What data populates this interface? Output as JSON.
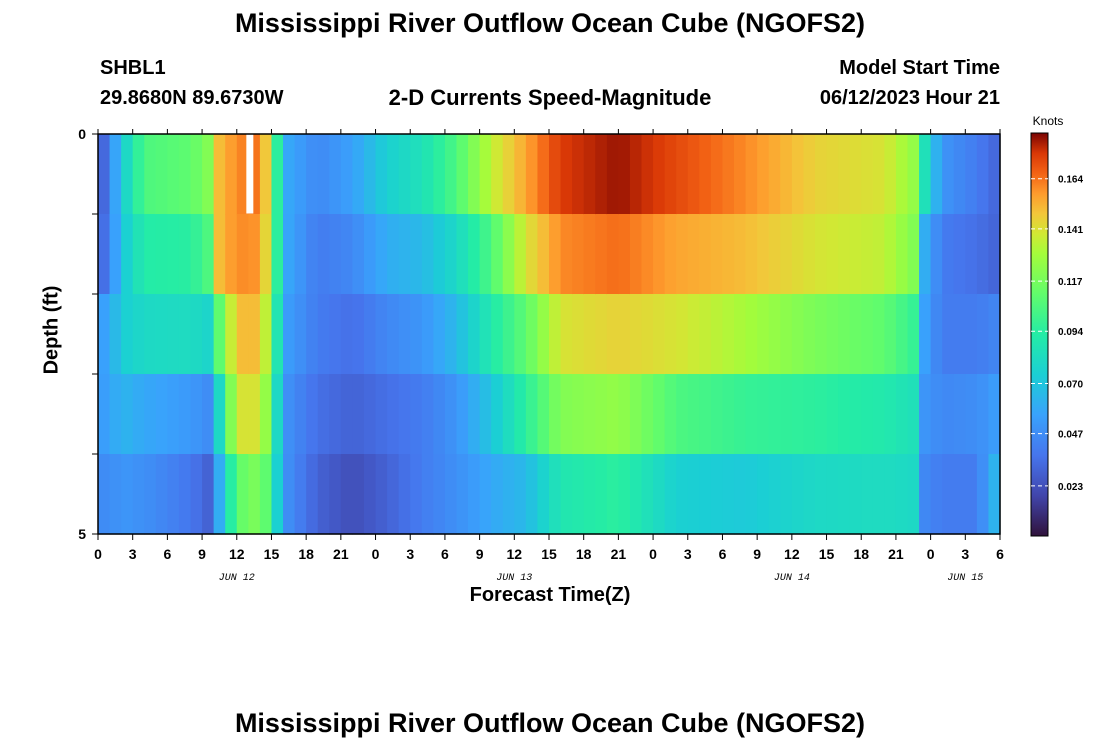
{
  "header": {
    "title": "Mississippi River Outflow Ocean Cube (NGOFS2)",
    "station": "SHBL1",
    "coords": "29.8680N  89.6730W",
    "subtitle": "2-D Currents Speed-Magnitude",
    "model_start_label": "Model Start Time",
    "model_start_value": "06/12/2023 Hour 21"
  },
  "footer": {
    "title": "Mississippi River Outflow Ocean Cube (NGOFS2)"
  },
  "chart_data": {
    "type": "heatmap",
    "title": "2-D Currents Speed-Magnitude",
    "xlabel": "Forecast Time(Z)",
    "ylabel": "Depth (ft)",
    "units": "Knots",
    "x_range_hours": [
      0,
      78
    ],
    "x_tick_labels": [
      "0",
      "3",
      "6",
      "9",
      "12",
      "15",
      "18",
      "21",
      "0",
      "3",
      "6",
      "9",
      "12",
      "15",
      "18",
      "21",
      "0",
      "3",
      "6",
      "9",
      "12",
      "15",
      "18",
      "21",
      "0",
      "3",
      "6"
    ],
    "date_labels": [
      {
        "text": "JUN 12",
        "hour": 12
      },
      {
        "text": "JUN 13",
        "hour": 36
      },
      {
        "text": "JUN 14",
        "hour": 60
      },
      {
        "text": "JUN 15",
        "hour": 75
      }
    ],
    "y_tick_labels": [
      "0",
      "5"
    ],
    "y_range": [
      0,
      5
    ],
    "colorbar_ticks": [
      "0.164",
      "0.141",
      "0.117",
      "0.094",
      "0.070",
      "0.047",
      "0.023"
    ],
    "colorbar_range": [
      0.0,
      0.185
    ],
    "missing_cell": {
      "hour": 13,
      "layer": 0
    },
    "layers": 5,
    "keyframes": [
      {
        "hour": 0,
        "values": [
          0.02,
          0.025,
          0.05,
          0.05,
          0.045
        ]
      },
      {
        "hour": 1,
        "values": [
          0.045,
          0.045,
          0.06,
          0.058,
          0.048
        ]
      },
      {
        "hour": 2.5,
        "values": [
          0.08,
          0.075,
          0.075,
          0.062,
          0.05
        ]
      },
      {
        "hour": 4,
        "values": [
          0.105,
          0.092,
          0.08,
          0.058,
          0.048
        ]
      },
      {
        "hour": 8,
        "values": [
          0.11,
          0.094,
          0.082,
          0.052,
          0.038
        ]
      },
      {
        "hour": 9.5,
        "values": [
          0.12,
          0.105,
          0.078,
          0.047,
          0.03
        ]
      },
      {
        "hour": 10.5,
        "values": [
          0.15,
          0.15,
          0.11,
          0.08,
          0.06
        ]
      },
      {
        "hour": 12,
        "values": [
          0.16,
          0.16,
          0.15,
          0.14,
          0.11
        ]
      },
      {
        "hour": 14,
        "values": [
          0.165,
          0.158,
          0.15,
          0.14,
          0.12
        ]
      },
      {
        "hour": 15,
        "values": [
          0.13,
          0.13,
          0.12,
          0.11,
          0.1
        ]
      },
      {
        "hour": 16,
        "values": [
          0.06,
          0.06,
          0.055,
          0.05,
          0.05
        ]
      },
      {
        "hour": 19,
        "values": [
          0.045,
          0.04,
          0.04,
          0.035,
          0.03
        ]
      },
      {
        "hour": 22,
        "values": [
          0.055,
          0.045,
          0.035,
          0.03,
          0.022
        ]
      },
      {
        "hour": 25,
        "values": [
          0.075,
          0.06,
          0.045,
          0.035,
          0.03
        ]
      },
      {
        "hour": 28,
        "values": [
          0.085,
          0.065,
          0.05,
          0.04,
          0.04
        ]
      },
      {
        "hour": 31,
        "values": [
          0.105,
          0.08,
          0.065,
          0.05,
          0.048
        ]
      },
      {
        "hour": 34,
        "values": [
          0.135,
          0.105,
          0.09,
          0.07,
          0.058
        ]
      },
      {
        "hour": 37,
        "values": [
          0.155,
          0.14,
          0.11,
          0.095,
          0.065
        ]
      },
      {
        "hour": 40,
        "values": [
          0.175,
          0.16,
          0.14,
          0.12,
          0.088
        ]
      },
      {
        "hour": 45,
        "values": [
          0.182,
          0.165,
          0.145,
          0.125,
          0.095
        ]
      },
      {
        "hour": 50,
        "values": [
          0.172,
          0.155,
          0.14,
          0.105,
          0.075
        ]
      },
      {
        "hour": 56,
        "values": [
          0.16,
          0.15,
          0.13,
          0.098,
          0.072
        ]
      },
      {
        "hour": 62,
        "values": [
          0.145,
          0.14,
          0.118,
          0.095,
          0.08
        ]
      },
      {
        "hour": 68,
        "values": [
          0.14,
          0.135,
          0.11,
          0.09,
          0.082
        ]
      },
      {
        "hour": 70.5,
        "values": [
          0.125,
          0.12,
          0.098,
          0.085,
          0.08
        ]
      },
      {
        "hour": 71.5,
        "values": [
          0.085,
          0.06,
          0.055,
          0.05,
          0.045
        ]
      },
      {
        "hour": 73,
        "values": [
          0.05,
          0.04,
          0.04,
          0.045,
          0.04
        ]
      },
      {
        "hour": 76,
        "values": [
          0.04,
          0.035,
          0.04,
          0.047,
          0.04
        ]
      },
      {
        "hour": 78,
        "values": [
          0.03,
          0.03,
          0.045,
          0.055,
          0.07
        ]
      }
    ]
  }
}
